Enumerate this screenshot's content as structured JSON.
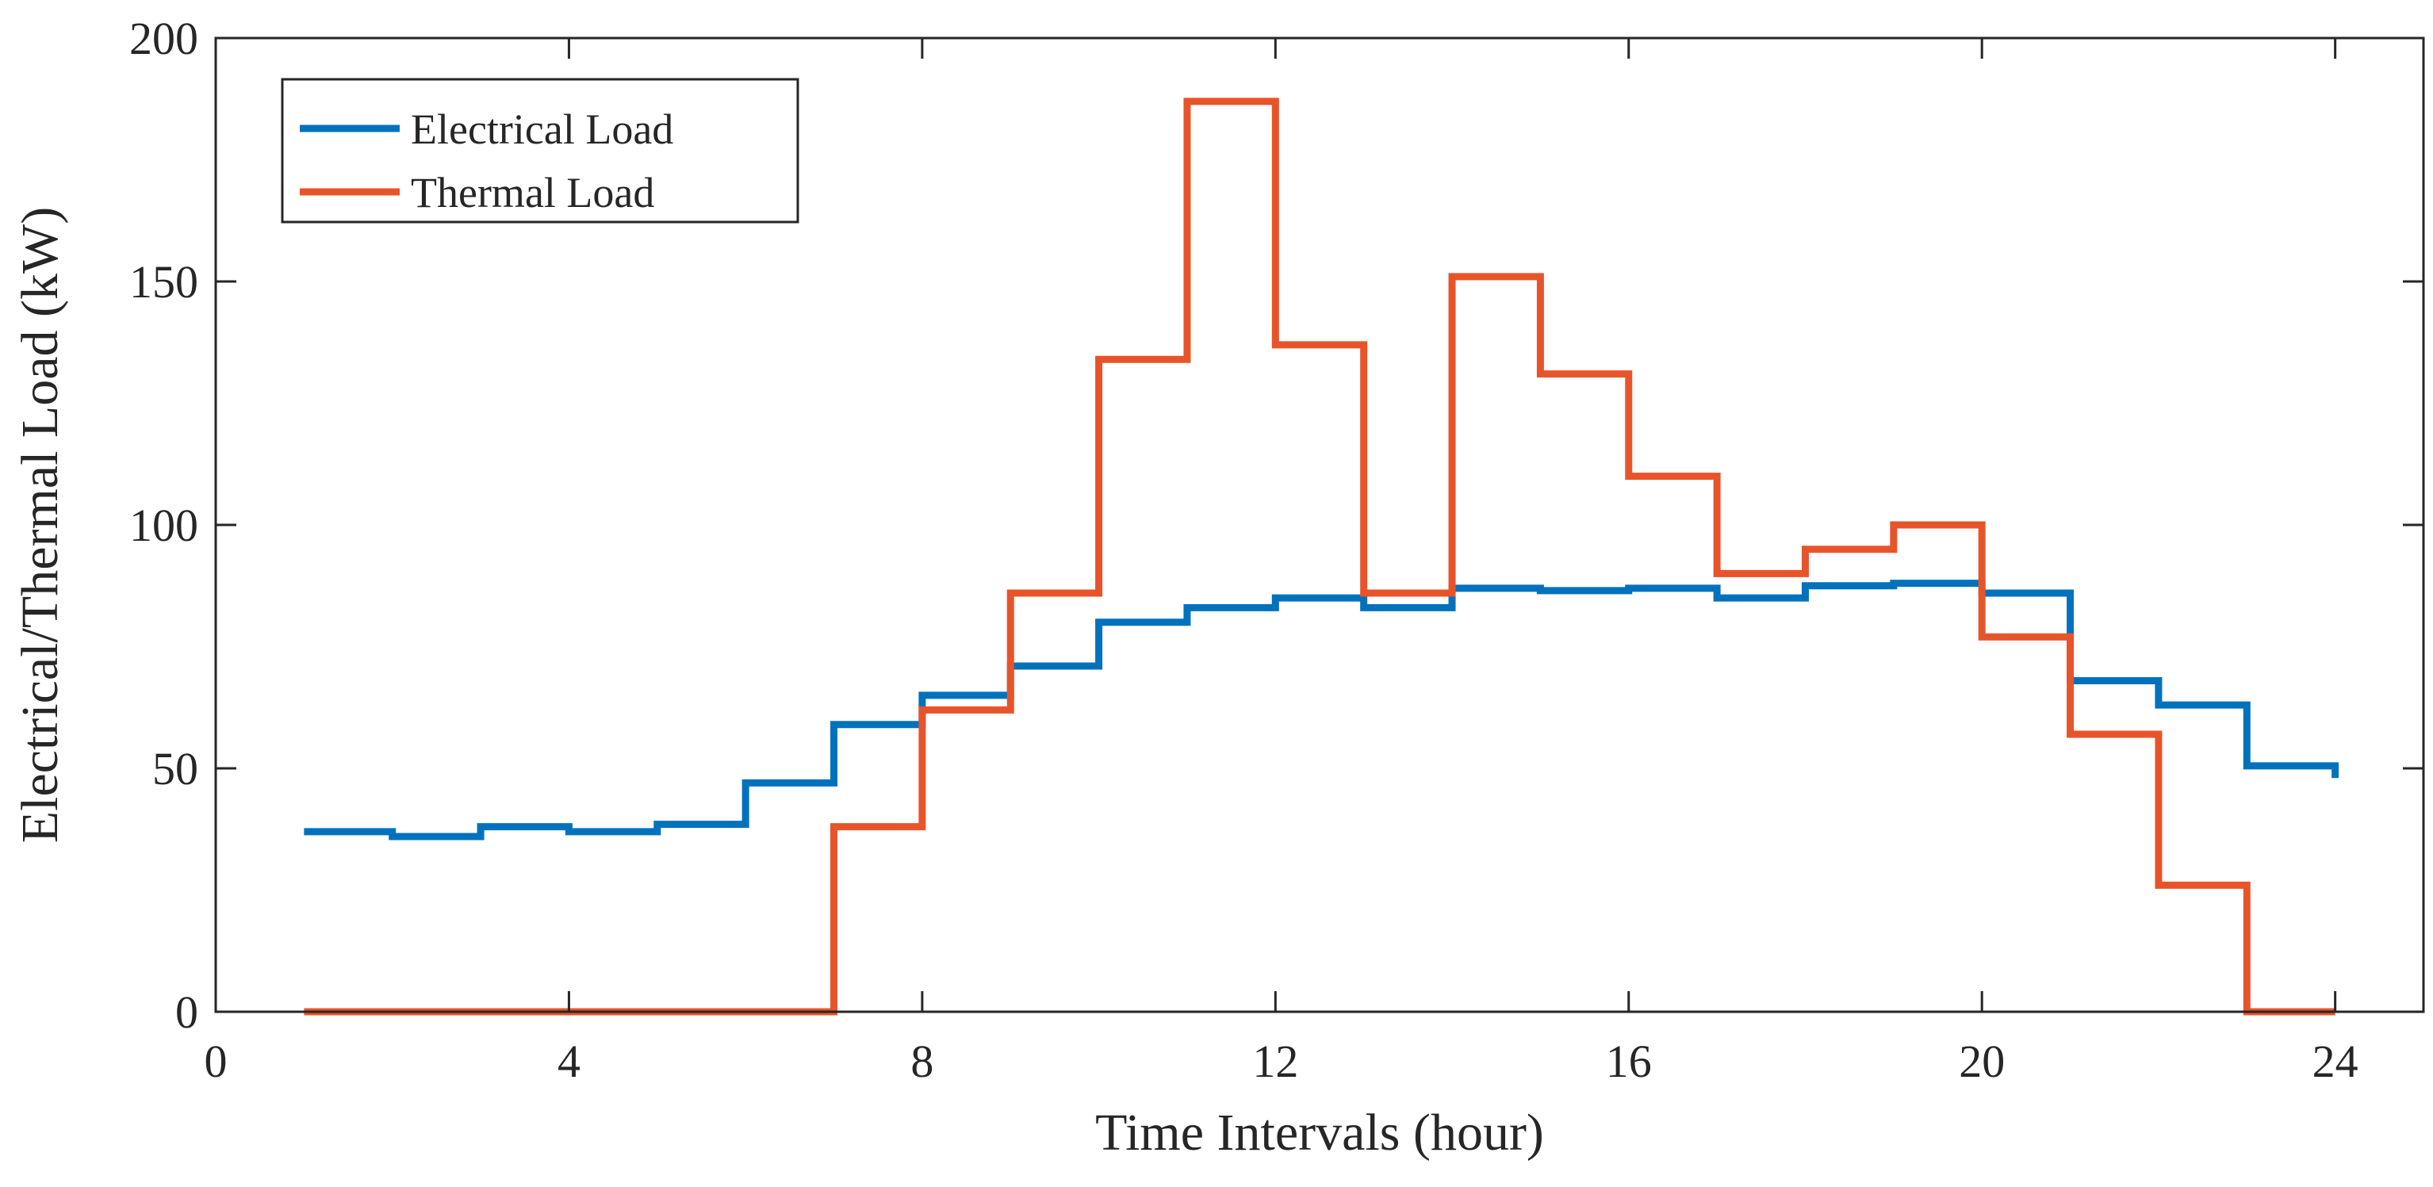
{
  "chart_data": {
    "type": "line",
    "step": "post",
    "xlabel": "Time Intervals (hour)",
    "ylabel": "Electrical/Thermal Load (kW)",
    "xlim": [
      0,
      25
    ],
    "ylim": [
      0,
      200
    ],
    "xticks": [
      0,
      4,
      8,
      12,
      16,
      20,
      24
    ],
    "yticks": [
      0,
      50,
      100,
      150,
      200
    ],
    "grid": false,
    "legend_position": "top-left",
    "x": [
      1,
      2,
      3,
      4,
      5,
      6,
      7,
      8,
      9,
      10,
      11,
      12,
      13,
      14,
      15,
      16,
      17,
      18,
      19,
      20,
      21,
      22,
      23,
      24
    ],
    "series": [
      {
        "name": "Electrical Load",
        "color": "#0072BD",
        "values": [
          37,
          36,
          38,
          37,
          38.5,
          47,
          59,
          65,
          71,
          80,
          83,
          85,
          83,
          87,
          86.5,
          87,
          85,
          87.5,
          88,
          86,
          68,
          63,
          50.5,
          48
        ]
      },
      {
        "name": "Thermal Load",
        "color": "#E8542A",
        "values": [
          0,
          0,
          0,
          0,
          0,
          0,
          38,
          62,
          86,
          134,
          187,
          137,
          86,
          151,
          131,
          110,
          90,
          95,
          100,
          77,
          57,
          26,
          0,
          0
        ]
      }
    ]
  }
}
